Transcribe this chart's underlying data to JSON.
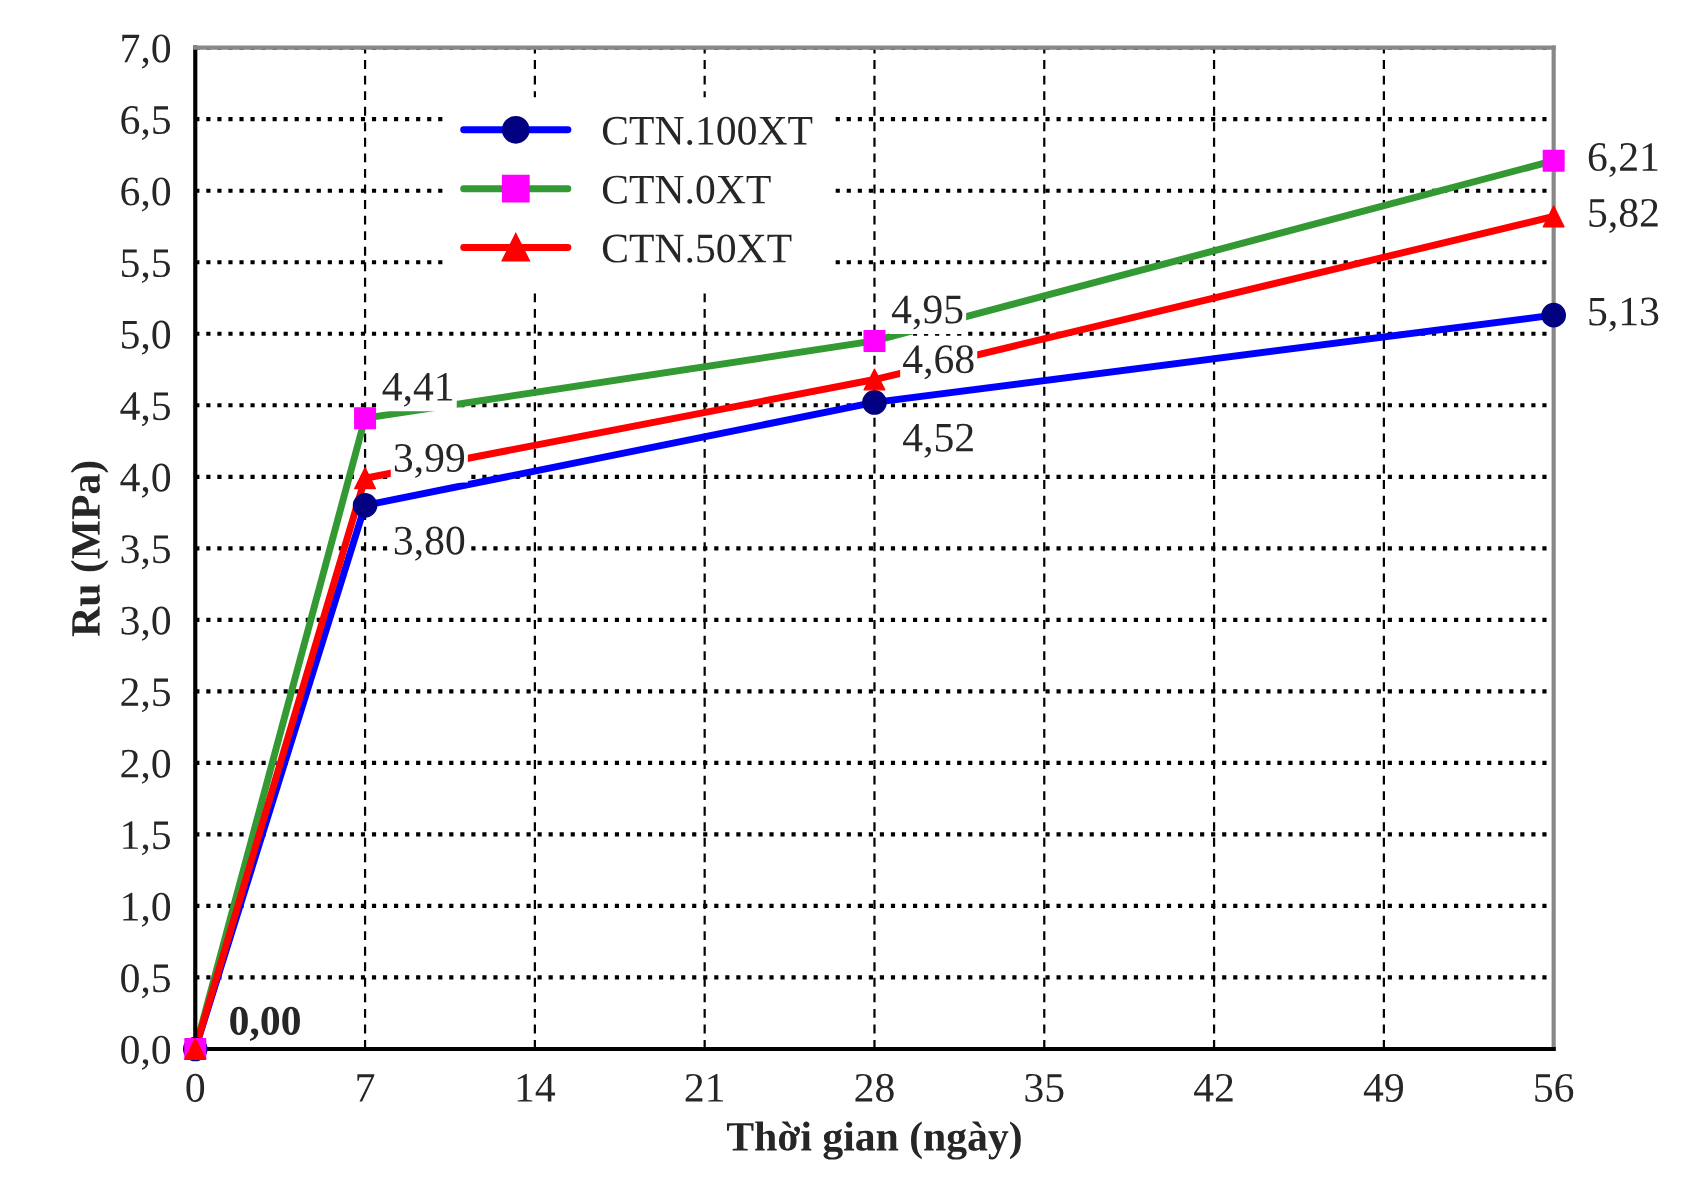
{
  "chart_data": {
    "type": "line",
    "xlabel": "Thời gian (ngày)",
    "ylabel": "Ru (MPa)",
    "x": [
      0,
      7,
      28,
      56
    ],
    "series": [
      {
        "name": "CTN.100XT",
        "color": "#0000ff",
        "colors": [
          "#000080",
          "#000080",
          "#000080",
          "#000080"
        ],
        "marker": "circle",
        "values": [
          0.0,
          3.8,
          4.52,
          5.13
        ],
        "value_labels": [
          "0,00",
          "3,80",
          "4,52",
          "5,13"
        ]
      },
      {
        "name": "CTN.0XT",
        "color": "#339933",
        "colors": [
          "#ff00ff",
          "#ff00ff",
          "#ff00ff",
          "#ff00ff"
        ],
        "marker": "square",
        "values": [
          0.0,
          4.41,
          4.95,
          6.21
        ],
        "value_labels": [
          null,
          "4,41",
          "4,95",
          "6,21"
        ]
      },
      {
        "name": "CTN.50XT",
        "color": "#ff0000",
        "colors": [
          "#ff0000",
          "#ff0000",
          "#ff0000",
          "#ff0000"
        ],
        "marker": "triangle",
        "values": [
          0.0,
          3.99,
          4.68,
          5.82
        ],
        "value_labels": [
          null,
          "3,99",
          "4,68",
          "5,82"
        ]
      }
    ],
    "xlim": [
      0,
      56
    ],
    "xticks": [
      0,
      7,
      14,
      21,
      28,
      35,
      42,
      49,
      56
    ],
    "ylim": [
      0,
      7
    ],
    "yticks": [
      {
        "value": 0,
        "label": "0,0"
      },
      {
        "value": 0.5,
        "label": "0,5"
      },
      {
        "value": 1,
        "label": "1,0"
      },
      {
        "value": 1.5,
        "label": "1,5"
      },
      {
        "value": 2,
        "label": "2,0"
      },
      {
        "value": 2.5,
        "label": "2,5"
      },
      {
        "value": 3,
        "label": "3,0"
      },
      {
        "value": 3.5,
        "label": "3,5"
      },
      {
        "value": 4,
        "label": "4,0"
      },
      {
        "value": 4.5,
        "label": "4,5"
      },
      {
        "value": 5,
        "label": "5,0"
      },
      {
        "value": 5.5,
        "label": "5,5"
      },
      {
        "value": 6,
        "label": "6,0"
      },
      {
        "value": 6.5,
        "label": "6,5"
      },
      {
        "value": 7,
        "label": "7,0"
      }
    ],
    "grid": true,
    "legend": "top left",
    "line_style": "solid"
  }
}
